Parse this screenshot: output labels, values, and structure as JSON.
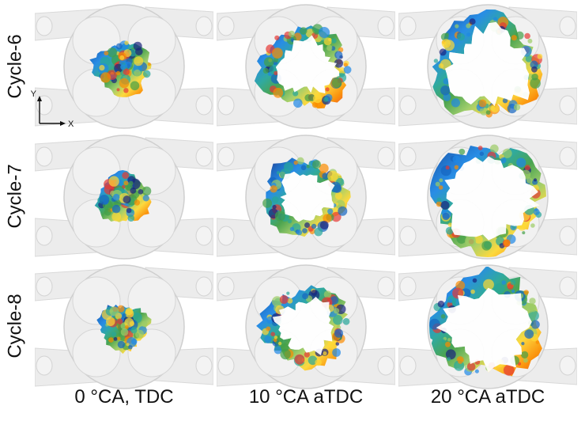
{
  "rows": [
    {
      "label": "Cycle-6",
      "stages": [
        0.3,
        0.62,
        0.86
      ]
    },
    {
      "label": "Cycle-7",
      "stages": [
        0.26,
        0.56,
        0.9
      ]
    },
    {
      "label": "Cycle-8",
      "stages": [
        0.22,
        0.6,
        0.88
      ]
    }
  ],
  "columns": [
    {
      "label": "0 °CA, TDC"
    },
    {
      "label": "10 °CA aTDC"
    },
    {
      "label": "20 °CA aTDC"
    }
  ],
  "axes": {
    "y_label": "Y",
    "x_label": "X"
  },
  "colors": {
    "colormap": [
      "#1a237e",
      "#1565c0",
      "#1e88e5",
      "#26a69a",
      "#43a047",
      "#9ccc65",
      "#fdd835",
      "#fb8c00",
      "#e53935"
    ],
    "engine": "#d9d9d9",
    "cylinder": "#ececec"
  }
}
